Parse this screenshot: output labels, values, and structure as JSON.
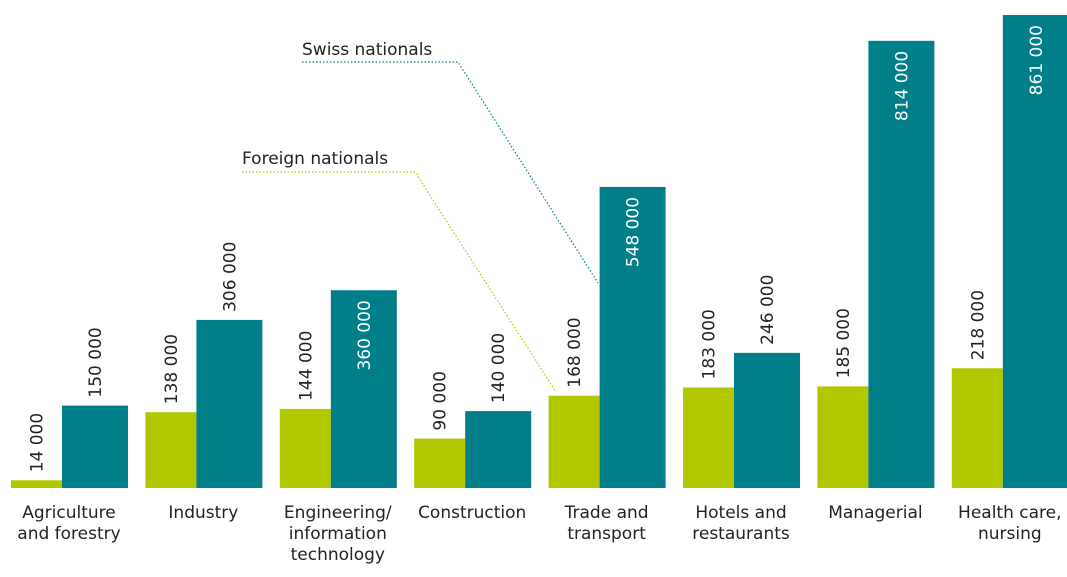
{
  "chart_data": {
    "type": "bar",
    "categories": [
      "Agriculture\nand forestry",
      "Industry",
      "Engineering/\ninformation\ntechnology",
      "Construction",
      "Trade and\ntransport",
      "Hotels and\nrestaurants",
      "Managerial",
      "Health care,\nnursing"
    ],
    "series": [
      {
        "name": "Foreign nationals",
        "color": "#b1c800",
        "values": [
          14000,
          138000,
          144000,
          90000,
          168000,
          183000,
          185000,
          218000
        ],
        "value_labels": [
          "14 000",
          "138 000",
          "144 000",
          "90 000",
          "168 000",
          "183 000",
          "185 000",
          "218 000"
        ]
      },
      {
        "name": "Swiss nationals",
        "color": "#007f8b",
        "values": [
          150000,
          306000,
          360000,
          140000,
          548000,
          246000,
          814000,
          861000
        ],
        "value_labels": [
          "150 000",
          "306 000",
          "360 000",
          "140 000",
          "548 000",
          "246 000",
          "814 000",
          "861 000"
        ]
      }
    ]
  }
}
